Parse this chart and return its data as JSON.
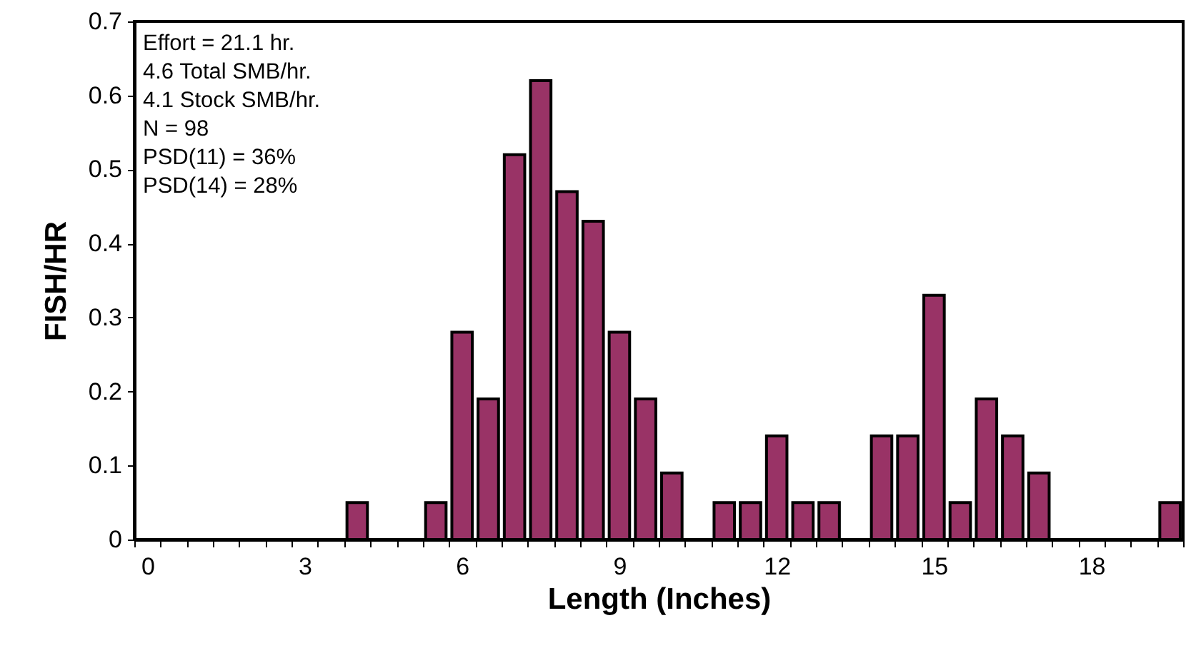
{
  "chart_data": {
    "type": "bar",
    "xlabel": "Length (Inches)",
    "ylabel": "FISH/HR",
    "categories": [
      "0",
      null,
      null,
      null,
      null,
      null,
      "3",
      null,
      null,
      null,
      null,
      null,
      "6",
      null,
      null,
      null,
      null,
      null,
      "9",
      null,
      null,
      null,
      null,
      null,
      "12",
      null,
      null,
      null,
      null,
      null,
      "15",
      null,
      null,
      null,
      null,
      null,
      "18",
      null,
      null,
      null
    ],
    "values": [
      null,
      null,
      null,
      null,
      null,
      null,
      null,
      null,
      0.05,
      null,
      null,
      0.05,
      0.28,
      0.19,
      0.52,
      0.62,
      0.47,
      0.43,
      0.28,
      0.19,
      0.09,
      null,
      0.05,
      0.05,
      0.14,
      0.05,
      0.05,
      null,
      0.14,
      0.14,
      0.33,
      0.05,
      0.19,
      0.14,
      0.09,
      null,
      null,
      null,
      null,
      0.05
    ],
    "color": "#993366",
    "ylim": [
      0,
      0.7
    ],
    "yticks": [
      0,
      0.1,
      0.2,
      0.3,
      0.4,
      0.5,
      0.6,
      0.7
    ],
    "grid": false,
    "annotations": [
      "Effort = 21.1 hr.",
      "4.6 Total SMB/hr.",
      "4.1 Stock SMB/hr.",
      "N = 98",
      "PSD(11) = 36%",
      "PSD(14) = 28%"
    ]
  }
}
